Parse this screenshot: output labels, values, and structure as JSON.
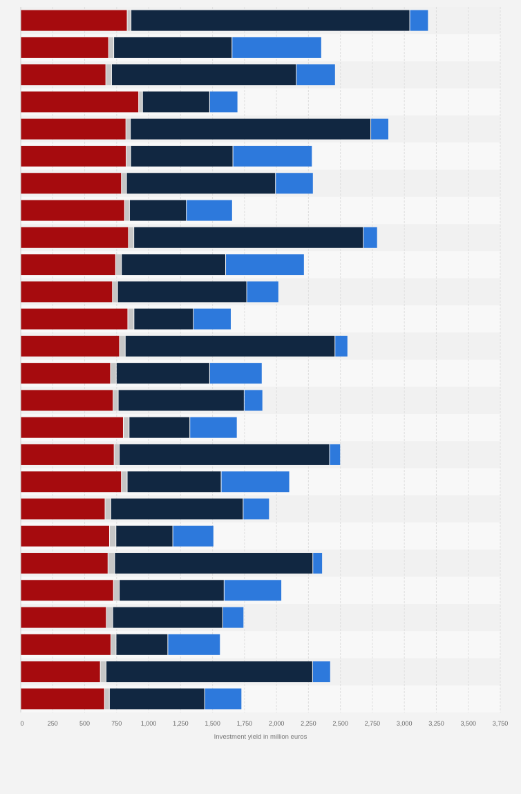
{
  "chart_data": {
    "type": "bar",
    "orientation": "horizontal",
    "stacked": true,
    "xlabel": "Investment yield in million euros",
    "xlim": [
      0,
      3750
    ],
    "x_ticks": [
      0,
      250,
      500,
      750,
      1000,
      1250,
      1500,
      1750,
      2000,
      2250,
      2500,
      2750,
      3000,
      3250,
      3500,
      3750
    ],
    "x_tick_labels": [
      "0",
      "250",
      "500",
      "750",
      "1,000",
      "1,250",
      "1,500",
      "1,750",
      "2,000",
      "2,250",
      "2,500",
      "2,750",
      "3,000",
      "3,250",
      "3,500",
      "3,750"
    ],
    "grid": true,
    "legend": "none",
    "categories_visible": false,
    "series": [
      {
        "values": [
          835,
          690,
          668,
          925,
          825,
          827,
          790,
          815,
          845,
          745,
          720,
          840,
          775,
          705,
          725,
          805,
          733,
          790,
          662,
          697,
          685,
          728,
          672,
          708,
          625,
          658
        ]
      },
      {
        "values": [
          30,
          40,
          45,
          30,
          35,
          35,
          40,
          38,
          42,
          45,
          40,
          48,
          45,
          45,
          40,
          45,
          40,
          45,
          45,
          50,
          52,
          45,
          50,
          40,
          45,
          38
        ]
      },
      {
        "values": [
          2180,
          925,
          1445,
          525,
          1880,
          800,
          1165,
          445,
          1795,
          815,
          1010,
          465,
          1640,
          730,
          985,
          475,
          1645,
          735,
          1035,
          445,
          1550,
          820,
          860,
          405,
          1615,
          745
        ]
      },
      {
        "values": [
          145,
          700,
          305,
          220,
          140,
          620,
          295,
          360,
          110,
          615,
          250,
          295,
          100,
          410,
          145,
          370,
          85,
          535,
          205,
          320,
          75,
          450,
          165,
          410,
          140,
          290
        ]
      }
    ],
    "colors": [
      "#a60b0e",
      "#c6c6c6",
      "#112741",
      "#2d79dc"
    ]
  }
}
